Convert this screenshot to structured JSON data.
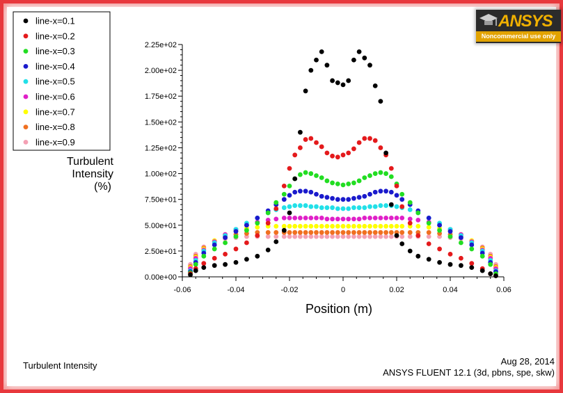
{
  "logo": {
    "name": "ANSYS",
    "subtitle": "Noncommercial use only"
  },
  "footer": {
    "left": "Turbulent Intensity",
    "date": "Aug 28, 2014",
    "software": "ANSYS FLUENT 12.1 (3d, pbns, spe, skw)"
  },
  "chart_data": {
    "type": "scatter",
    "title": "",
    "xlabel": "Position (m)",
    "ylabel": [
      "Turbulent",
      "Intensity",
      "(%)"
    ],
    "xlim": [
      -0.06,
      0.06
    ],
    "ylim": [
      0,
      225
    ],
    "xticks": [
      "-0.06",
      "-0.04",
      "-0.02",
      "0",
      "0.02",
      "0.04",
      "0.06"
    ],
    "yticks": [
      "0.00e+00",
      "2.50e+01",
      "5.00e+01",
      "7.50e+01",
      "1.00e+02",
      "1.25e+02",
      "1.50e+02",
      "1.75e+02",
      "2.00e+02",
      "2.25e+02"
    ],
    "legend_position": "top-left",
    "grid": false,
    "series": [
      {
        "name": "line-x=0.1",
        "color": "#000000",
        "x": [
          -0.057,
          -0.055,
          -0.052,
          -0.048,
          -0.044,
          -0.04,
          -0.036,
          -0.032,
          -0.028,
          -0.025,
          -0.022,
          -0.02,
          -0.018,
          -0.016,
          -0.014,
          -0.012,
          -0.01,
          -0.008,
          -0.006,
          -0.004,
          -0.002,
          0,
          0.002,
          0.004,
          0.006,
          0.008,
          0.01,
          0.012,
          0.014,
          0.016,
          0.018,
          0.02,
          0.022,
          0.025,
          0.028,
          0.032,
          0.036,
          0.04,
          0.044,
          0.048,
          0.052,
          0.055,
          0.057
        ],
        "y": [
          2,
          6,
          9,
          11,
          12,
          14,
          17,
          20,
          26,
          34,
          45,
          62,
          95,
          140,
          180,
          200,
          210,
          218,
          205,
          190,
          188,
          186,
          190,
          210,
          218,
          212,
          205,
          185,
          170,
          120,
          70,
          40,
          32,
          25,
          20,
          17,
          14,
          12,
          11,
          9,
          6,
          3,
          1
        ]
      },
      {
        "name": "line-x=0.2",
        "color": "#e41a1c",
        "x": [
          -0.057,
          -0.055,
          -0.052,
          -0.048,
          -0.044,
          -0.04,
          -0.036,
          -0.032,
          -0.028,
          -0.025,
          -0.022,
          -0.02,
          -0.018,
          -0.016,
          -0.014,
          -0.012,
          -0.01,
          -0.008,
          -0.006,
          -0.004,
          -0.002,
          0,
          0.002,
          0.004,
          0.006,
          0.008,
          0.01,
          0.012,
          0.014,
          0.016,
          0.018,
          0.02,
          0.022,
          0.025,
          0.028,
          0.032,
          0.036,
          0.04,
          0.044,
          0.048,
          0.052,
          0.055,
          0.057
        ],
        "y": [
          3,
          8,
          13,
          18,
          22,
          27,
          33,
          40,
          52,
          66,
          88,
          105,
          118,
          125,
          133,
          134,
          130,
          126,
          120,
          117,
          116,
          118,
          120,
          124,
          130,
          134,
          134,
          132,
          125,
          118,
          105,
          88,
          68,
          52,
          40,
          32,
          27,
          22,
          18,
          13,
          8,
          3,
          1
        ]
      },
      {
        "name": "line-x=0.3",
        "color": "#22dd22",
        "x": [
          -0.057,
          -0.055,
          -0.052,
          -0.048,
          -0.044,
          -0.04,
          -0.036,
          -0.032,
          -0.028,
          -0.025,
          -0.022,
          -0.02,
          -0.018,
          -0.016,
          -0.014,
          -0.012,
          -0.01,
          -0.008,
          -0.006,
          -0.004,
          -0.002,
          0,
          0.002,
          0.004,
          0.006,
          0.008,
          0.01,
          0.012,
          0.014,
          0.016,
          0.018,
          0.02,
          0.022,
          0.025,
          0.028,
          0.032,
          0.036,
          0.04,
          0.044,
          0.048,
          0.052,
          0.055,
          0.057
        ],
        "y": [
          4,
          12,
          20,
          27,
          33,
          39,
          45,
          52,
          62,
          72,
          80,
          88,
          95,
          99,
          101,
          100,
          98,
          96,
          93,
          91,
          90,
          89,
          90,
          91,
          93,
          96,
          98,
          100,
          101,
          100,
          97,
          90,
          80,
          72,
          62,
          52,
          45,
          39,
          33,
          27,
          20,
          12,
          3
        ]
      },
      {
        "name": "line-x=0.4",
        "color": "#1a1acc",
        "x": [
          -0.057,
          -0.055,
          -0.052,
          -0.048,
          -0.044,
          -0.04,
          -0.036,
          -0.032,
          -0.028,
          -0.025,
          -0.022,
          -0.02,
          -0.018,
          -0.016,
          -0.014,
          -0.012,
          -0.01,
          -0.008,
          -0.006,
          -0.004,
          -0.002,
          0,
          0.002,
          0.004,
          0.006,
          0.008,
          0.01,
          0.012,
          0.014,
          0.016,
          0.018,
          0.02,
          0.022,
          0.025,
          0.028,
          0.032,
          0.036,
          0.04,
          0.044,
          0.048,
          0.052,
          0.055,
          0.057
        ],
        "y": [
          5,
          14,
          23,
          31,
          38,
          44,
          50,
          57,
          64,
          70,
          75,
          79,
          82,
          83,
          83,
          82,
          80,
          78,
          77,
          76,
          75,
          75,
          75,
          76,
          77,
          78,
          80,
          82,
          83,
          83,
          82,
          79,
          75,
          70,
          64,
          57,
          50,
          44,
          38,
          31,
          23,
          14,
          5
        ]
      },
      {
        "name": "line-x=0.5",
        "color": "#22e0e8",
        "x": [
          -0.057,
          -0.055,
          -0.052,
          -0.048,
          -0.044,
          -0.04,
          -0.036,
          -0.032,
          -0.028,
          -0.025,
          -0.022,
          -0.02,
          -0.018,
          -0.016,
          -0.014,
          -0.012,
          -0.01,
          -0.008,
          -0.006,
          -0.004,
          -0.002,
          0,
          0.002,
          0.004,
          0.006,
          0.008,
          0.01,
          0.012,
          0.014,
          0.016,
          0.018,
          0.02,
          0.022,
          0.025,
          0.028,
          0.032,
          0.036,
          0.04,
          0.044,
          0.048,
          0.052,
          0.055,
          0.057
        ],
        "y": [
          6,
          16,
          25,
          33,
          40,
          46,
          52,
          57,
          62,
          65,
          67,
          68,
          69,
          69,
          69,
          68,
          68,
          67,
          67,
          67,
          66,
          66,
          66,
          67,
          67,
          67,
          68,
          68,
          69,
          69,
          69,
          68,
          67,
          65,
          62,
          57,
          52,
          46,
          40,
          33,
          25,
          16,
          6
        ]
      },
      {
        "name": "line-x=0.6",
        "color": "#e020c8",
        "x": [
          -0.057,
          -0.055,
          -0.052,
          -0.048,
          -0.044,
          -0.04,
          -0.036,
          -0.032,
          -0.028,
          -0.025,
          -0.022,
          -0.02,
          -0.018,
          -0.016,
          -0.014,
          -0.012,
          -0.01,
          -0.008,
          -0.006,
          -0.004,
          -0.002,
          0,
          0.002,
          0.004,
          0.006,
          0.008,
          0.01,
          0.012,
          0.014,
          0.016,
          0.018,
          0.02,
          0.022,
          0.025,
          0.028,
          0.032,
          0.036,
          0.04,
          0.044,
          0.048,
          0.052,
          0.055,
          0.057
        ],
        "y": [
          8,
          18,
          26,
          34,
          41,
          46,
          50,
          53,
          55,
          56,
          57,
          57,
          57,
          57,
          57,
          57,
          57,
          57,
          56,
          56,
          56,
          56,
          56,
          56,
          56,
          57,
          57,
          57,
          57,
          57,
          57,
          57,
          57,
          56,
          55,
          53,
          50,
          46,
          41,
          34,
          26,
          18,
          8
        ]
      },
      {
        "name": "line-x=0.7",
        "color": "#ffff00",
        "x": [
          -0.057,
          -0.055,
          -0.052,
          -0.048,
          -0.044,
          -0.04,
          -0.036,
          -0.032,
          -0.028,
          -0.025,
          -0.022,
          -0.02,
          -0.018,
          -0.016,
          -0.014,
          -0.012,
          -0.01,
          -0.008,
          -0.006,
          -0.004,
          -0.002,
          0,
          0.002,
          0.004,
          0.006,
          0.008,
          0.01,
          0.012,
          0.014,
          0.016,
          0.018,
          0.02,
          0.022,
          0.025,
          0.028,
          0.032,
          0.036,
          0.04,
          0.044,
          0.048,
          0.052,
          0.055,
          0.057
        ],
        "y": [
          9,
          19,
          27,
          35,
          41,
          45,
          47,
          48,
          49,
          49,
          49,
          49,
          49,
          49,
          49,
          49,
          49,
          49,
          49,
          49,
          49,
          49,
          49,
          49,
          49,
          49,
          49,
          49,
          49,
          49,
          49,
          49,
          49,
          49,
          49,
          48,
          47,
          45,
          41,
          35,
          27,
          19,
          9
        ]
      },
      {
        "name": "line-x=0.8",
        "color": "#f07020",
        "x": [
          -0.057,
          -0.055,
          -0.052,
          -0.048,
          -0.044,
          -0.04,
          -0.036,
          -0.032,
          -0.028,
          -0.025,
          -0.022,
          -0.02,
          -0.018,
          -0.016,
          -0.014,
          -0.012,
          -0.01,
          -0.008,
          -0.006,
          -0.004,
          -0.002,
          0,
          0.002,
          0.004,
          0.006,
          0.008,
          0.01,
          0.012,
          0.014,
          0.016,
          0.018,
          0.02,
          0.022,
          0.025,
          0.028,
          0.032,
          0.036,
          0.04,
          0.044,
          0.048,
          0.052,
          0.055,
          0.057
        ],
        "y": [
          10,
          20,
          28,
          35,
          39,
          41,
          42,
          43,
          43,
          43,
          43,
          43,
          43,
          43,
          43,
          43,
          43,
          43,
          43,
          43,
          43,
          43,
          43,
          43,
          43,
          43,
          43,
          43,
          43,
          43,
          43,
          43,
          43,
          43,
          43,
          43,
          42,
          41,
          39,
          35,
          28,
          20,
          10
        ]
      },
      {
        "name": "line-x=0.9",
        "color": "#f4a0b4",
        "x": [
          -0.057,
          -0.055,
          -0.052,
          -0.048,
          -0.044,
          -0.04,
          -0.036,
          -0.032,
          -0.028,
          -0.025,
          -0.022,
          -0.02,
          -0.018,
          -0.016,
          -0.014,
          -0.012,
          -0.01,
          -0.008,
          -0.006,
          -0.004,
          -0.002,
          0,
          0.002,
          0.004,
          0.006,
          0.008,
          0.01,
          0.012,
          0.014,
          0.016,
          0.018,
          0.02,
          0.022,
          0.025,
          0.028,
          0.032,
          0.036,
          0.04,
          0.044,
          0.048,
          0.052,
          0.055,
          0.057
        ],
        "y": [
          12,
          22,
          29,
          34,
          37,
          38,
          39,
          39,
          39,
          39,
          39,
          39,
          39,
          39,
          39,
          39,
          39,
          39,
          39,
          39,
          39,
          39,
          39,
          39,
          39,
          39,
          39,
          39,
          39,
          39,
          39,
          39,
          39,
          39,
          39,
          39,
          39,
          38,
          37,
          34,
          29,
          22,
          12
        ]
      }
    ]
  }
}
